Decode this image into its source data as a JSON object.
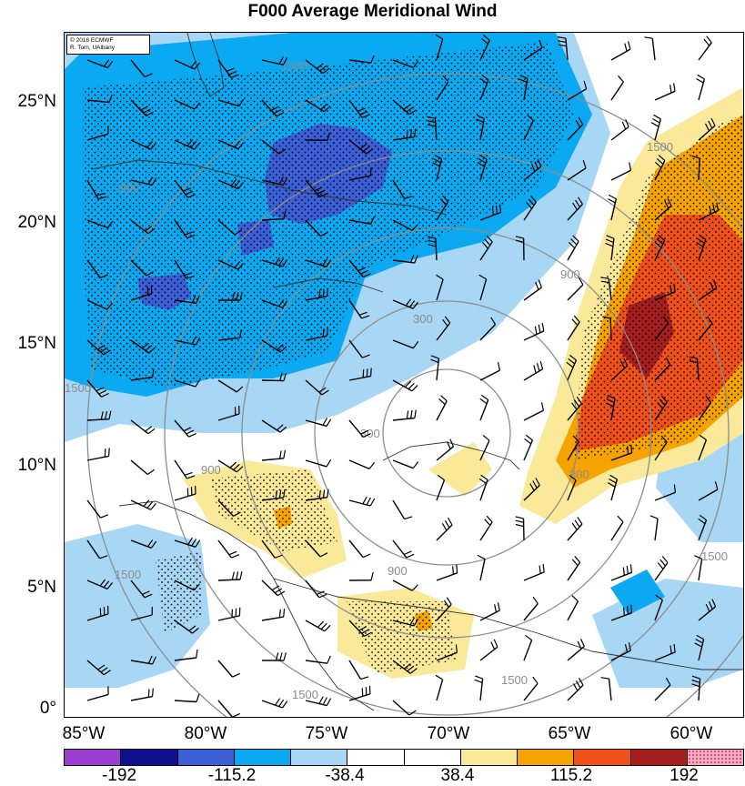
{
  "title": "F000 Average Meridional Wind",
  "credit": {
    "line1": "© 2016 ECMWF",
    "line2": "R. Torn, UAlbany"
  },
  "lat_labels": [
    "25°N",
    "20°N",
    "15°N",
    "10°N",
    "5°N",
    "0°"
  ],
  "lon_labels": [
    "85°W",
    "80°W",
    "75°W",
    "70°W",
    "65°W",
    "60°W"
  ],
  "contour_labels": [
    "1500",
    "900",
    "300",
    "300",
    "900",
    "1500",
    "1500",
    "1500",
    "1500",
    "900",
    "900",
    "1500",
    "300",
    "1500"
  ],
  "colorbar": {
    "colors": [
      "#9b3fd3",
      "#10108f",
      "#3b5fd6",
      "#0ba9f1",
      "#a7d7f4",
      "#ffffff",
      "#ffffff",
      "#fbe99a",
      "#f5a300",
      "#f0501a",
      "#a71e1e",
      "#f8a8c0"
    ],
    "labels": [
      "-192",
      "-115.2",
      "-38.4",
      "38.4",
      "115.2",
      "192"
    ]
  },
  "field_colors": {
    "light_blue": "#a7d7f4",
    "blue": "#0ba9f1",
    "dark_blue": "#3b5fd6",
    "yellow": "#fbe99a",
    "orange": "#f5a300",
    "red_orange": "#f0501a",
    "dark_red": "#a71e1e"
  }
}
